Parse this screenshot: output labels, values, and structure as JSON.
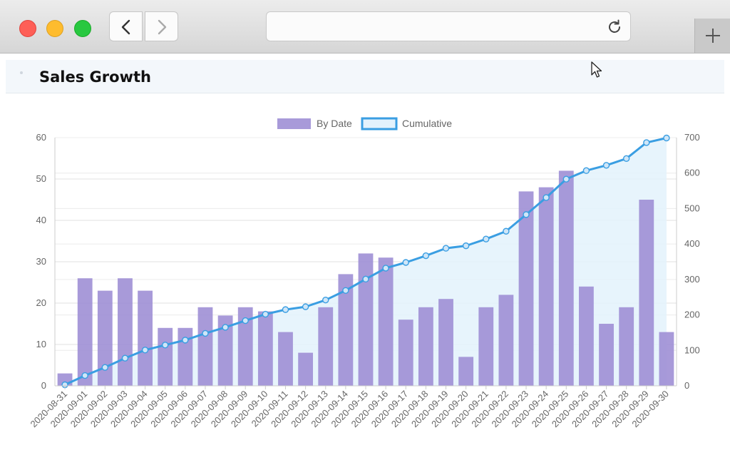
{
  "page": {
    "title": "Sales Growth"
  },
  "icons": {
    "back": "chevron-left-icon",
    "forward": "chevron-right-icon",
    "reload": "reload-icon",
    "new_tab": "plus-icon",
    "cursor": "cursor-icon"
  },
  "colors": {
    "bar": "#9f8fd5",
    "line": "#3a9ee2",
    "area": "#e3f2fc"
  },
  "chart_data": {
    "type": "bar",
    "title": "",
    "legend": {
      "position": "top",
      "entries": [
        "By Date",
        "Cumulative"
      ]
    },
    "categories": [
      "2020-08-31",
      "2020-09-01",
      "2020-09-02",
      "2020-09-03",
      "2020-09-04",
      "2020-09-05",
      "2020-09-06",
      "2020-09-07",
      "2020-09-08",
      "2020-09-09",
      "2020-09-10",
      "2020-09-11",
      "2020-09-12",
      "2020-09-13",
      "2020-09-14",
      "2020-09-15",
      "2020-09-16",
      "2020-09-17",
      "2020-09-18",
      "2020-09-19",
      "2020-09-20",
      "2020-09-21",
      "2020-09-22",
      "2020-09-23",
      "2020-09-24",
      "2020-09-25",
      "2020-09-26",
      "2020-09-27",
      "2020-09-28",
      "2020-09-29",
      "2020-09-30"
    ],
    "series": [
      {
        "name": "By Date",
        "type": "bar",
        "axis": "left",
        "values": [
          3,
          26,
          23,
          26,
          23,
          14,
          14,
          19,
          17,
          19,
          18,
          13,
          8,
          19,
          27,
          32,
          31,
          16,
          19,
          21,
          7,
          19,
          22,
          47,
          48,
          52,
          24,
          15,
          19,
          45,
          13
        ]
      },
      {
        "name": "Cumulative",
        "type": "line",
        "fill": true,
        "axis": "right",
        "values": [
          3,
          29,
          52,
          78,
          101,
          115,
          129,
          148,
          165,
          184,
          202,
          215,
          223,
          242,
          269,
          301,
          332,
          348,
          367,
          388,
          395,
          414,
          436,
          483,
          531,
          583,
          607,
          622,
          641,
          686,
          699
        ]
      }
    ],
    "y_left": {
      "min": 0,
      "max": 60,
      "ticks": [
        "0",
        "10",
        "20",
        "30",
        "40",
        "50",
        "60"
      ]
    },
    "y_right": {
      "min": 0,
      "max": 700,
      "ticks": [
        "0",
        "100",
        "200",
        "300",
        "400",
        "500",
        "600",
        "700"
      ]
    },
    "grid": true
  }
}
